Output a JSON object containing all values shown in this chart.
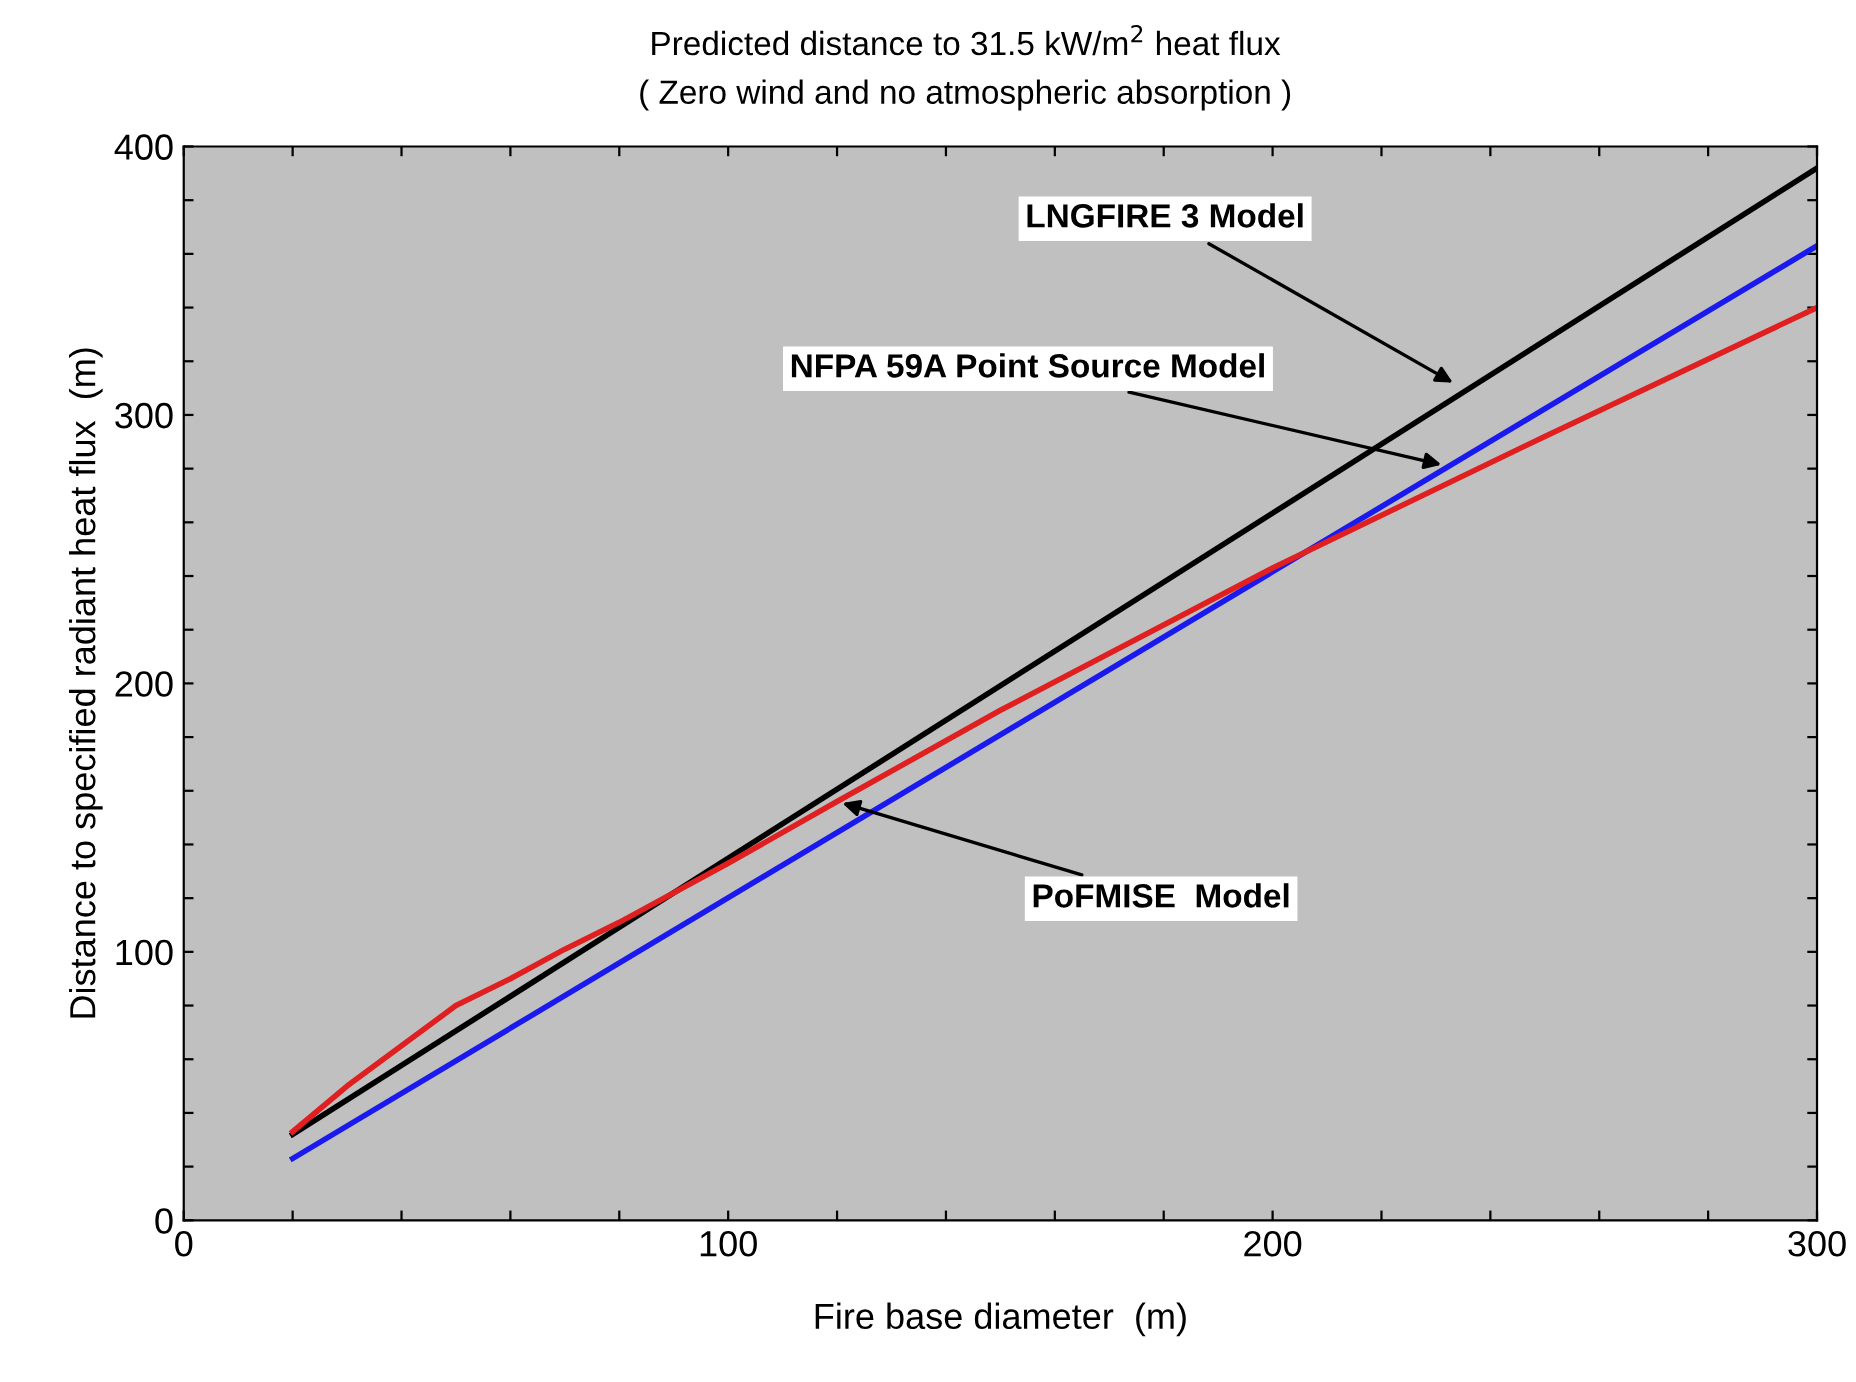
{
  "chart_data": {
    "type": "line",
    "title": "Predicted distance to 31.5 kW/m$^{2}$ heat flux",
    "subtitle": "( Zero wind and no atmospheric absorption )",
    "xlabel": "Fire base diameter  (m)",
    "ylabel": "Distance to specified radiant heat flux  (m)",
    "series": [
      {
        "color": "#000000",
        "x": [
          20,
          300
        ],
        "values": [
          32,
          392
        ]
      },
      {
        "color": "#1a1aee",
        "x": [
          20,
          300
        ],
        "values": [
          23,
          363
        ]
      },
      {
        "color": "#e02020",
        "x": [
          20,
          30,
          40,
          50,
          60,
          70,
          80,
          100,
          120,
          150,
          200,
          250,
          300
        ],
        "values": [
          33,
          50,
          65,
          80,
          90,
          101,
          111,
          133,
          156,
          190,
          243,
          292,
          340
        ]
      }
    ],
    "annotations": [
      {
        "text": "LNGFIRE 3 Model",
        "x": 234,
        "y": 311
      },
      {
        "text": "NFPA 59A Point Source Model",
        "x": 232,
        "y": 281
      },
      {
        "text": "PoFMISE  Model",
        "x": 120,
        "y": 156
      }
    ],
    "xlim": [
      0,
      300
    ],
    "ylim": [
      0,
      400
    ],
    "xticks": [
      0,
      {
        "value": 20,
        "label": null
      },
      {
        "value": 40,
        "label": null
      },
      {
        "value": 60,
        "label": null
      },
      {
        "value": 80,
        "label": null
      },
      100,
      {
        "value": 120,
        "label": null
      },
      {
        "value": 140,
        "label": null
      },
      {
        "value": 160,
        "label": null
      },
      {
        "value": 180,
        "label": null
      },
      200,
      {
        "value": 220,
        "label": null
      },
      {
        "value": 240,
        "label": null
      },
      {
        "value": 260,
        "label": null
      },
      {
        "value": 280,
        "label": null
      },
      300
    ],
    "yticks": [
      0,
      {
        "value": 20,
        "label": null
      },
      {
        "value": 40,
        "label": null
      },
      {
        "value": 60,
        "label": null
      },
      {
        "value": 80,
        "label": null
      },
      100,
      {
        "value": 120,
        "label": null
      },
      {
        "value": 140,
        "label": null
      },
      {
        "value": 160,
        "label": null
      },
      {
        "value": 180,
        "label": null
      },
      200,
      {
        "value": 220,
        "label": null
      },
      {
        "value": 240,
        "label": null
      },
      {
        "value": 260,
        "label": null
      },
      {
        "value": 280,
        "label": null
      },
      300,
      {
        "value": 320,
        "label": null
      },
      {
        "value": 340,
        "label": null
      },
      {
        "value": 360,
        "label": null
      },
      {
        "value": 380,
        "label": null
      },
      400
    ],
    "grid": false,
    "legend": false,
    "marker": "none",
    "line_style": "solid"
  }
}
